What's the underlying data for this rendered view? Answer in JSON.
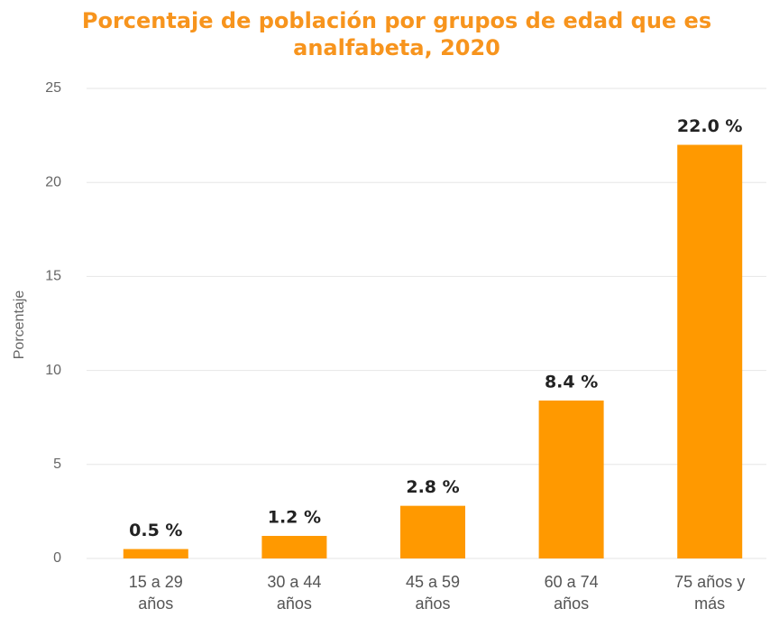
{
  "chart_data": {
    "type": "bar",
    "title": "Porcentaje de población por grupos de edad que es analfabeta, 2020",
    "ylabel": "Porcentaje",
    "categories": [
      "15 a 29 años",
      "30 a 44 años",
      "45 a 59 años",
      "60 a 74 años",
      "75 años y más"
    ],
    "values": [
      0.5,
      1.2,
      2.8,
      8.4,
      22.0
    ],
    "value_labels": [
      "0.5 %",
      "1.2 %",
      "2.8 %",
      "8.4 %",
      "22.0 %"
    ],
    "color": "#ff9900",
    "ylim": [
      0,
      25
    ],
    "yticks": [
      0,
      5,
      10,
      15,
      20,
      25
    ],
    "grid": true
  }
}
